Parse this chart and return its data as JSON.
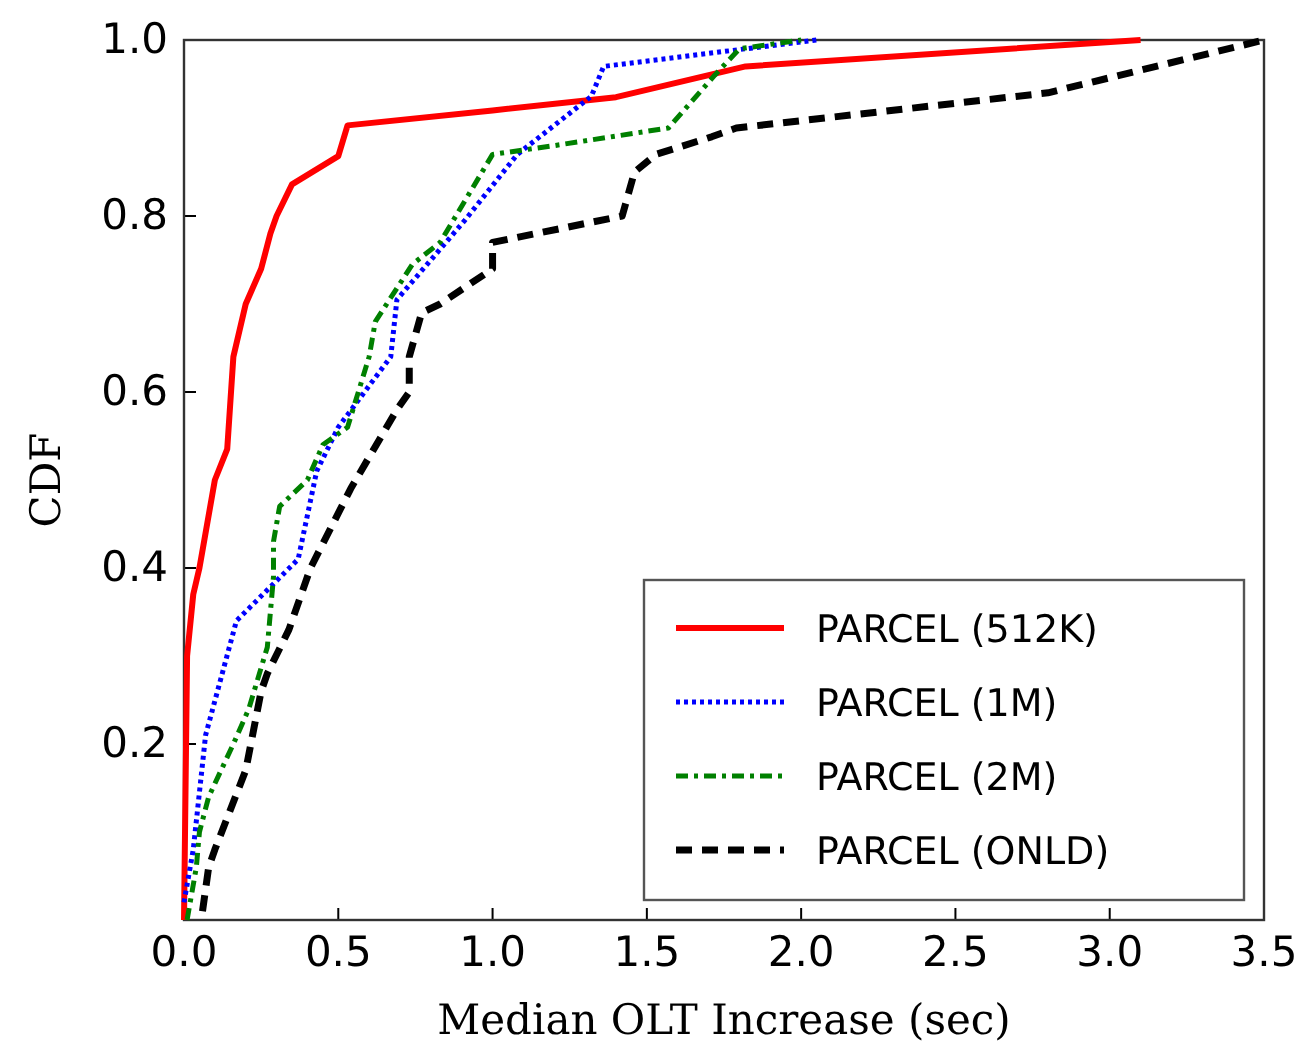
{
  "chart_data": {
    "type": "line",
    "xlabel": "Median OLT Increase (sec)",
    "ylabel": "CDF",
    "xlim": [
      0,
      3.5
    ],
    "xticks": [
      {
        "value": 0,
        "label": "0.0"
      },
      0.5,
      {
        "value": 1,
        "label": "1.0"
      },
      1.5,
      {
        "value": 2,
        "label": "2.0"
      },
      2.5,
      {
        "value": 3,
        "label": "3.0"
      },
      3.5
    ],
    "ylim": [
      0,
      1
    ],
    "yticks": [
      {
        "value": 0,
        "label": null
      },
      0.2,
      0.4,
      0.6,
      0.8,
      {
        "value": 1,
        "label": "1.0"
      }
    ],
    "grid": false,
    "legend": "bottom right",
    "series": [
      {
        "name": "PARCEL (512K)",
        "color": "#ff0000",
        "line_style": "solid",
        "x": [
          0,
          0.01,
          0.03,
          0.05,
          0.1,
          0.14,
          0.16,
          0.2,
          0.25,
          0.28,
          0.3,
          0.35,
          0.5,
          0.53,
          1.0,
          1.4,
          1.82,
          3.1
        ],
        "values": [
          0,
          0.3,
          0.37,
          0.4,
          0.5,
          0.535,
          0.64,
          0.7,
          0.74,
          0.78,
          0.8,
          0.836,
          0.868,
          0.903,
          0.92,
          0.935,
          0.97,
          1.0
        ]
      },
      {
        "name": "PARCEL (1M)",
        "color": "#0000ff",
        "line_style": "dotted",
        "x": [
          0,
          0.03,
          0.07,
          0.17,
          0.37,
          0.43,
          0.5,
          0.67,
          0.69,
          0.91,
          1.08,
          1.32,
          1.36,
          2.05
        ],
        "values": [
          0.02,
          0.08,
          0.21,
          0.34,
          0.41,
          0.51,
          0.56,
          0.64,
          0.705,
          0.795,
          0.87,
          0.936,
          0.97,
          1.0
        ]
      },
      {
        "name": "PARCEL (2M)",
        "color": "#008000",
        "line_style": "dashdot",
        "x": [
          0.01,
          0.04,
          0.05,
          0.08,
          0.16,
          0.21,
          0.27,
          0.29,
          0.29,
          0.31,
          0.4,
          0.45,
          0.53,
          0.6,
          0.62,
          0.74,
          0.83,
          1.0,
          1.2,
          1.57,
          1.72,
          1.8,
          2.0
        ],
        "values": [
          0,
          0.06,
          0.1,
          0.14,
          0.2,
          0.24,
          0.31,
          0.39,
          0.43,
          0.47,
          0.5,
          0.54,
          0.56,
          0.64,
          0.68,
          0.745,
          0.77,
          0.87,
          0.88,
          0.9,
          0.96,
          0.99,
          1.0
        ]
      },
      {
        "name": "PARCEL (ONLD)",
        "color": "#000000",
        "line_style": "dashed",
        "x": [
          0.06,
          0.08,
          0.1,
          0.2,
          0.25,
          0.27,
          0.34,
          0.41,
          0.54,
          0.69,
          0.73,
          0.73,
          0.77,
          0.83,
          1.0,
          1.0,
          1.42,
          1.46,
          1.53,
          1.71,
          1.79,
          2.8,
          3.5
        ],
        "values": [
          0.01,
          0.06,
          0.08,
          0.17,
          0.26,
          0.28,
          0.33,
          0.4,
          0.49,
          0.58,
          0.6,
          0.64,
          0.69,
          0.7,
          0.74,
          0.77,
          0.8,
          0.85,
          0.87,
          0.89,
          0.9,
          0.94,
          1.0
        ]
      }
    ]
  }
}
